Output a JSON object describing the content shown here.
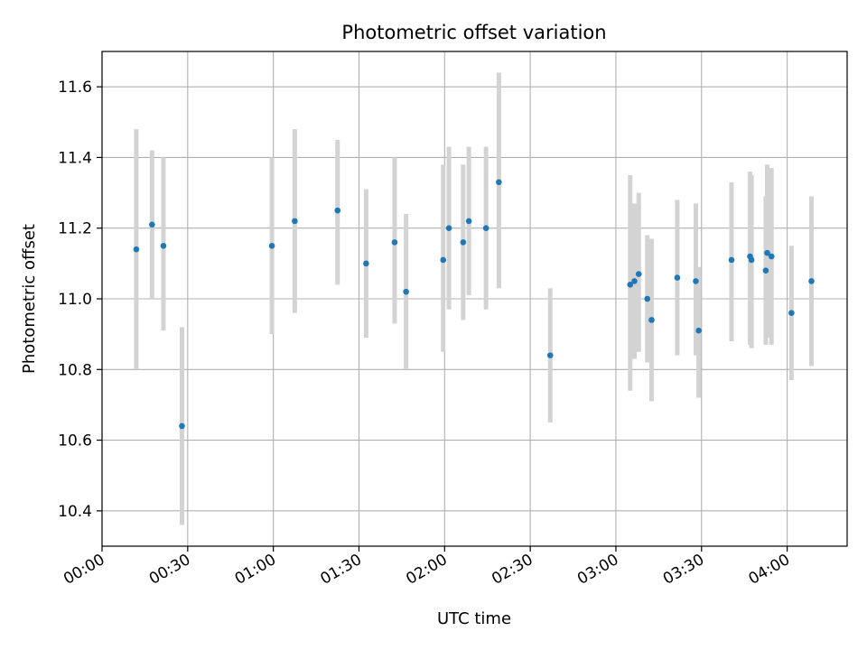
{
  "chart_data": {
    "type": "scatter",
    "title": "Photometric offset variation",
    "xlabel": "UTC time",
    "ylabel": "Photometric offset",
    "x_unit": "minutes after 00:00 UTC",
    "xlim": [
      0,
      261
    ],
    "ylim": [
      10.3,
      11.7
    ],
    "x_ticks": [
      0,
      30,
      60,
      90,
      120,
      150,
      180,
      210,
      240
    ],
    "x_tick_labels": [
      "00:00",
      "00:30",
      "01:00",
      "01:30",
      "02:00",
      "02:30",
      "03:00",
      "03:30",
      "04:00"
    ],
    "y_ticks": [
      10.4,
      10.6,
      10.8,
      11.0,
      11.2,
      11.4,
      11.6
    ],
    "y_tick_labels": [
      "10.4",
      "10.6",
      "10.8",
      "11.0",
      "11.2",
      "11.4",
      "11.6"
    ],
    "grid": true,
    "marker_color": "#1f77b4",
    "errorbar_color": "#d3d3d3",
    "points": [
      {
        "x": 12,
        "y": 11.14,
        "err_low": 10.8,
        "err_high": 11.48
      },
      {
        "x": 17.5,
        "y": 11.21,
        "err_low": 11.0,
        "err_high": 11.42
      },
      {
        "x": 21.5,
        "y": 11.15,
        "err_low": 10.91,
        "err_high": 11.4
      },
      {
        "x": 28,
        "y": 10.64,
        "err_low": 10.36,
        "err_high": 10.92
      },
      {
        "x": 59.5,
        "y": 11.15,
        "err_low": 10.9,
        "err_high": 11.4
      },
      {
        "x": 67.5,
        "y": 11.22,
        "err_low": 10.96,
        "err_high": 11.48
      },
      {
        "x": 82.5,
        "y": 11.25,
        "err_low": 11.04,
        "err_high": 11.45
      },
      {
        "x": 92.5,
        "y": 11.1,
        "err_low": 10.89,
        "err_high": 11.31
      },
      {
        "x": 102.5,
        "y": 11.16,
        "err_low": 10.93,
        "err_high": 11.4
      },
      {
        "x": 106.5,
        "y": 11.02,
        "err_low": 10.8,
        "err_high": 11.24
      },
      {
        "x": 119.5,
        "y": 11.11,
        "err_low": 10.85,
        "err_high": 11.38
      },
      {
        "x": 121.5,
        "y": 11.2,
        "err_low": 10.97,
        "err_high": 11.43
      },
      {
        "x": 126.5,
        "y": 11.16,
        "err_low": 10.94,
        "err_high": 11.38
      },
      {
        "x": 128.5,
        "y": 11.22,
        "err_low": 11.01,
        "err_high": 11.43
      },
      {
        "x": 134.5,
        "y": 11.2,
        "err_low": 10.97,
        "err_high": 11.43
      },
      {
        "x": 139,
        "y": 11.33,
        "err_low": 11.03,
        "err_high": 11.64
      },
      {
        "x": 157,
        "y": 10.84,
        "err_low": 10.65,
        "err_high": 11.03
      },
      {
        "x": 185,
        "y": 11.04,
        "err_low": 10.74,
        "err_high": 11.35
      },
      {
        "x": 186.5,
        "y": 11.05,
        "err_low": 10.83,
        "err_high": 11.27
      },
      {
        "x": 188,
        "y": 11.07,
        "err_low": 10.85,
        "err_high": 11.3
      },
      {
        "x": 191,
        "y": 11.0,
        "err_low": 10.82,
        "err_high": 11.18
      },
      {
        "x": 192.5,
        "y": 10.94,
        "err_low": 10.71,
        "err_high": 11.17
      },
      {
        "x": 201.5,
        "y": 11.06,
        "err_low": 10.84,
        "err_high": 11.28
      },
      {
        "x": 208,
        "y": 11.05,
        "err_low": 10.84,
        "err_high": 11.27
      },
      {
        "x": 209,
        "y": 10.91,
        "err_low": 10.72,
        "err_high": 11.09
      },
      {
        "x": 220.5,
        "y": 11.11,
        "err_low": 10.88,
        "err_high": 11.33
      },
      {
        "x": 227,
        "y": 11.12,
        "err_low": 10.87,
        "err_high": 11.36
      },
      {
        "x": 227.5,
        "y": 11.11,
        "err_low": 10.86,
        "err_high": 11.35
      },
      {
        "x": 232.5,
        "y": 11.08,
        "err_low": 10.87,
        "err_high": 11.29
      },
      {
        "x": 233,
        "y": 11.13,
        "err_low": 10.89,
        "err_high": 11.38
      },
      {
        "x": 234.5,
        "y": 11.12,
        "err_low": 10.87,
        "err_high": 11.37
      },
      {
        "x": 241.5,
        "y": 10.96,
        "err_low": 10.77,
        "err_high": 11.15
      },
      {
        "x": 248.5,
        "y": 11.05,
        "err_low": 10.81,
        "err_high": 11.29
      }
    ]
  }
}
